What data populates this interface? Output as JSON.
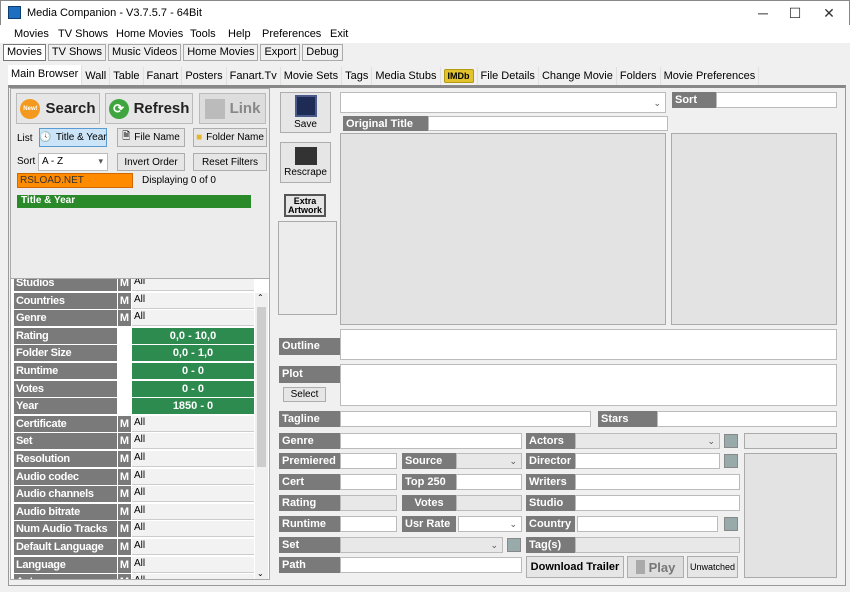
{
  "window": {
    "title": "Media Companion - V3.7.5.7 - 64Bit",
    "minimize": "─",
    "maximize": "☐",
    "close": "✕"
  },
  "menu": [
    "Movies",
    "TV Shows",
    "Home Movies",
    "Tools",
    "Help",
    "Preferences",
    "Exit"
  ],
  "top_tabs": [
    {
      "label": "Movies",
      "active": true
    },
    {
      "label": "TV Shows"
    },
    {
      "label": "Music Videos"
    },
    {
      "label": "Home Movies"
    },
    {
      "label": "Export"
    },
    {
      "label": "Debug"
    }
  ],
  "inner_tabs": [
    {
      "label": "Main Browser",
      "active": true
    },
    {
      "label": "Wall"
    },
    {
      "label": "Table"
    },
    {
      "label": "Fanart"
    },
    {
      "label": "Posters"
    },
    {
      "label": "Fanart.Tv"
    },
    {
      "label": "Movie Sets"
    },
    {
      "label": "Tags"
    },
    {
      "label": "Media Stubs"
    },
    {
      "label": "IMDb"
    },
    {
      "label": "File Details"
    },
    {
      "label": "Change Movie"
    },
    {
      "label": "Folders"
    },
    {
      "label": "Movie Preferences"
    }
  ],
  "browser": {
    "search": "Search",
    "search_badge": "New!",
    "refresh": "Refresh",
    "link": "Link",
    "list_label": "List",
    "list_title_year": "Title & Year",
    "list_file_name": "File Name",
    "list_folder_name": "Folder Name",
    "sort_label": "Sort",
    "sort_value": "A - Z",
    "invert_order": "Invert Order",
    "reset_filters": "Reset Filters",
    "filter_text": "RSLOAD.NET",
    "displaying": "Displaying 0 of 0",
    "list_header": "Title & Year",
    "accent_orange": "#ff8c00",
    "accent_green": "#2a8a2a"
  },
  "filters": [
    {
      "label": "Studios",
      "m": "M",
      "value": "All"
    },
    {
      "label": "Countries",
      "m": "M",
      "value": "All"
    },
    {
      "label": "Genre",
      "m": "M",
      "value": "All"
    },
    {
      "label": "Rating",
      "range": "0,0 - 10,0"
    },
    {
      "label": "Folder Size",
      "range": "0,0 - 1,0"
    },
    {
      "label": "Runtime",
      "range": "0 - 0"
    },
    {
      "label": "Votes",
      "range": "0 - 0"
    },
    {
      "label": "Year",
      "range": "1850 - 0"
    },
    {
      "label": "Certificate",
      "m": "M",
      "value": "All"
    },
    {
      "label": "Set",
      "m": "M",
      "value": "All"
    },
    {
      "label": "Resolution",
      "m": "M",
      "value": "All"
    },
    {
      "label": "Audio codec",
      "m": "M",
      "value": "All"
    },
    {
      "label": "Audio channels",
      "m": "M",
      "value": "All"
    },
    {
      "label": "Audio bitrate",
      "m": "M",
      "value": "All"
    },
    {
      "label": "Num Audio Tracks",
      "m": "M",
      "value": "All"
    },
    {
      "label": "Default Language",
      "m": "M",
      "value": "All"
    },
    {
      "label": "Language",
      "m": "M",
      "value": "All"
    },
    {
      "label": "Actors",
      "m": "M",
      "value": "All"
    }
  ],
  "details": {
    "save": "Save",
    "rescrape": "Rescrape",
    "extra_artwork": "Extra Artwork",
    "original_title": "Original Title",
    "sort": "Sort",
    "outline": "Outline",
    "plot": "Plot",
    "select": "Select",
    "tagline": "Tagline",
    "stars": "Stars",
    "genre": "Genre",
    "actors": "Actors",
    "premiered": "Premiered",
    "source": "Source",
    "director": "Director",
    "cert": "Cert",
    "top250": "Top 250",
    "writers": "Writers",
    "rating": "Rating",
    "votes": "Votes",
    "studio": "Studio",
    "runtime": "Runtime",
    "usr_rate": "Usr Rate",
    "country": "Country",
    "set": "Set",
    "tags": "Tag(s)",
    "path": "Path",
    "download_trailer": "Download Trailer",
    "play": "Play",
    "unwatched": "Unwatched"
  }
}
